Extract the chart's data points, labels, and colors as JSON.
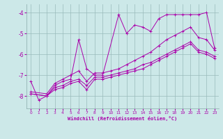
{
  "xlabel": "Windchill (Refroidissement éolien,°C)",
  "background_color": "#cce8e8",
  "line_color": "#aa00aa",
  "grid_color": "#99bbbb",
  "xlim": [
    -0.5,
    23.5
  ],
  "ylim": [
    -8.6,
    -3.6
  ],
  "yticks": [
    -8,
    -7,
    -6,
    -5,
    -4
  ],
  "xticks": [
    0,
    1,
    2,
    3,
    4,
    5,
    6,
    7,
    8,
    9,
    10,
    11,
    12,
    13,
    14,
    15,
    16,
    17,
    18,
    19,
    20,
    21,
    22,
    23
  ],
  "lines": [
    {
      "x": [
        0,
        1,
        2,
        3,
        4,
        5,
        6,
        7,
        8,
        9,
        11,
        12,
        13,
        14,
        15,
        16,
        17,
        18,
        19,
        20,
        21,
        22,
        23
      ],
      "y": [
        -7.3,
        -8.2,
        -8.0,
        -7.5,
        -7.3,
        -7.2,
        -5.3,
        -6.7,
        -7.0,
        -7.0,
        -4.1,
        -5.0,
        -4.6,
        -4.7,
        -4.9,
        -4.3,
        -4.1,
        -4.1,
        -4.1,
        -4.1,
        -4.1,
        -4.0,
        -5.7
      ]
    },
    {
      "x": [
        0,
        2,
        3,
        4,
        5,
        6,
        7,
        8,
        9,
        10,
        11,
        12,
        13,
        14,
        15,
        16,
        17,
        18,
        19,
        20,
        21,
        22,
        23
      ],
      "y": [
        -7.8,
        -7.9,
        -7.4,
        -7.2,
        -7.0,
        -6.8,
        -7.3,
        -6.9,
        -6.9,
        -6.8,
        -6.7,
        -6.5,
        -6.3,
        -6.1,
        -5.9,
        -5.6,
        -5.3,
        -5.1,
        -4.9,
        -4.7,
        -5.2,
        -5.3,
        -5.8
      ]
    },
    {
      "x": [
        0,
        2,
        3,
        4,
        5,
        6,
        7,
        8,
        9,
        10,
        11,
        12,
        13,
        14,
        15,
        16,
        17,
        18,
        19,
        20,
        21,
        22,
        23
      ],
      "y": [
        -7.9,
        -8.0,
        -7.6,
        -7.5,
        -7.3,
        -7.2,
        -7.5,
        -7.1,
        -7.1,
        -7.0,
        -6.9,
        -6.8,
        -6.7,
        -6.5,
        -6.4,
        -6.2,
        -6.0,
        -5.8,
        -5.6,
        -5.4,
        -5.8,
        -5.9,
        -6.1
      ]
    },
    {
      "x": [
        0,
        2,
        3,
        4,
        5,
        6,
        7,
        8,
        9,
        10,
        11,
        12,
        13,
        14,
        15,
        16,
        17,
        18,
        19,
        20,
        21,
        22,
        23
      ],
      "y": [
        -7.9,
        -8.0,
        -7.7,
        -7.6,
        -7.4,
        -7.3,
        -7.7,
        -7.2,
        -7.2,
        -7.1,
        -7.0,
        -6.9,
        -6.8,
        -6.7,
        -6.5,
        -6.3,
        -6.1,
        -5.9,
        -5.7,
        -5.5,
        -5.9,
        -6.0,
        -6.2
      ]
    }
  ]
}
